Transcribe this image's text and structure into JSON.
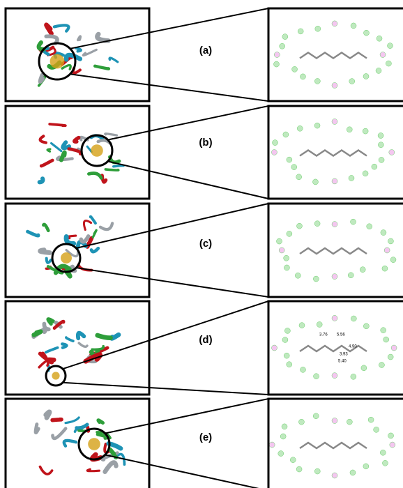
{
  "panels": [
    {
      "label": "(a)"
    },
    {
      "label": "(b)"
    },
    {
      "label": "(c)"
    },
    {
      "label": "(d)"
    },
    {
      "label": "(e)"
    }
  ],
  "panel_d_distances": [
    "3.76",
    "5.56",
    "4.90",
    "3.93",
    "5.40"
  ]
}
